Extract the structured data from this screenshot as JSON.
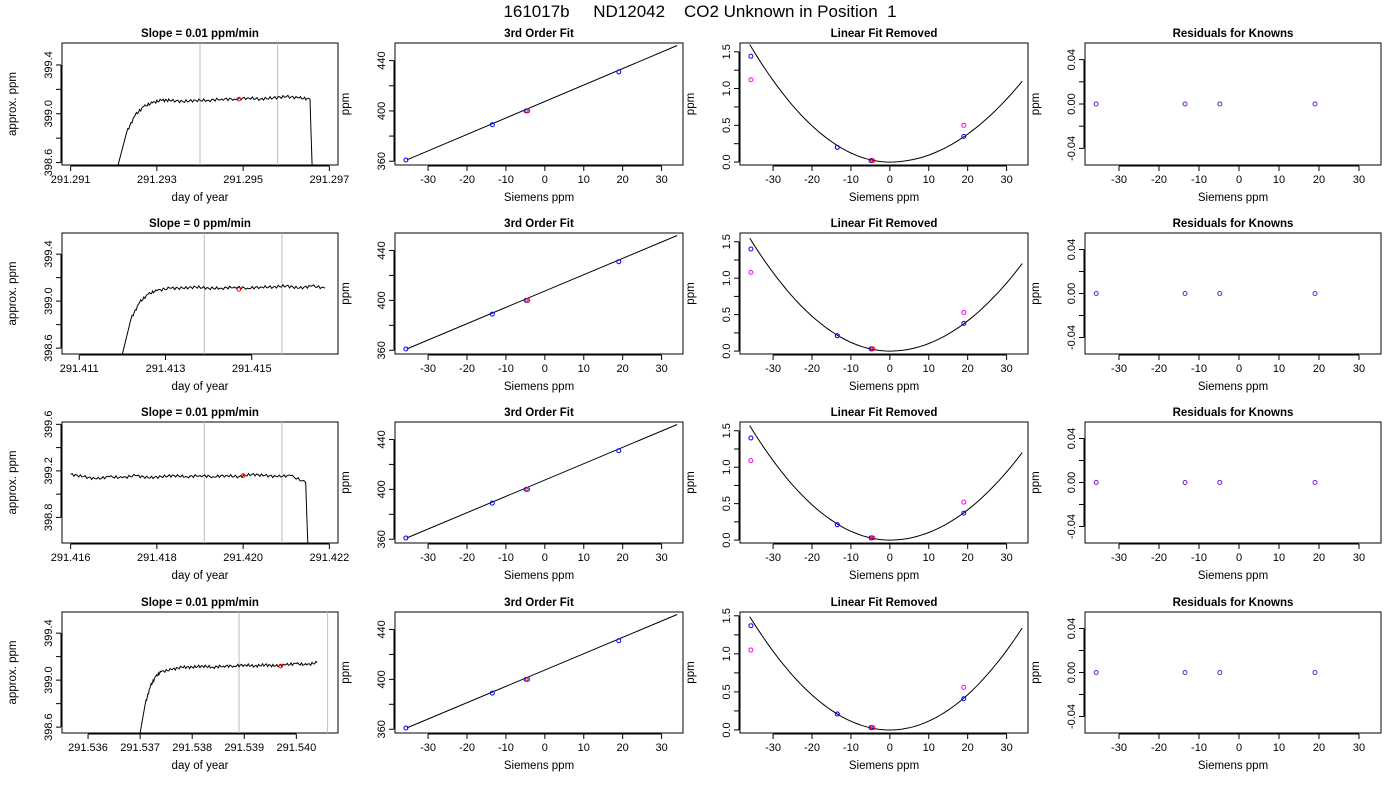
{
  "page_title": "161017b     ND12042    CO2 Unknown in Position  1",
  "chart_data": [
    {
      "type": "line",
      "panel": "ts",
      "title": "Slope =  0.01  ppm/min",
      "xlabel": "day of year",
      "ylabel": "approx. ppm",
      "xlim": [
        291.2908,
        291.2972
      ],
      "ylim": [
        398.58,
        399.58
      ],
      "xticks": [
        "291.291",
        "291.293",
        "291.295",
        "291.297"
      ],
      "xtick_values": [
        291.291,
        291.293,
        291.295,
        291.297
      ],
      "yticks": [
        "398.6",
        "399.0",
        "399.4"
      ],
      "ytick_values": [
        398.6,
        399.0,
        399.4
      ],
      "vlines": [
        291.294,
        291.2958
      ],
      "x": [
        291.2921,
        291.2923,
        291.2925,
        291.2927,
        291.2929,
        291.2931,
        291.2933,
        291.2936,
        291.2939,
        291.2942,
        291.2945,
        291.2948,
        291.2951,
        291.2954,
        291.2957,
        291.296,
        291.2963,
        291.29655,
        291.2966
      ],
      "y": [
        398.58,
        398.85,
        398.99,
        399.06,
        399.09,
        399.11,
        399.11,
        399.1,
        399.11,
        399.11,
        399.12,
        399.12,
        399.13,
        399.12,
        399.13,
        399.14,
        399.13,
        399.12,
        398.58
      ],
      "marker": {
        "x": 291.2949,
        "y": 399.12
      }
    },
    {
      "type": "scatter",
      "panel": "fit",
      "title": "3rd Order Fit",
      "xlabel": "Siemens ppm",
      "ylabel": "ppm",
      "xlim": [
        -38.5,
        35.5
      ],
      "ylim": [
        357,
        454
      ],
      "xticks": [
        "-30",
        "-20",
        "-10",
        "0",
        "10",
        "20",
        "30"
      ],
      "xtick_values": [
        -30,
        -20,
        -10,
        0,
        10,
        20,
        30
      ],
      "yticks": [
        "360",
        "400",
        "440"
      ],
      "ytick_values": [
        360,
        400,
        440
      ],
      "line": {
        "x": [
          -35.5,
          34
        ],
        "y": [
          361,
          452
        ]
      },
      "blue_points": {
        "x": [
          -35.7,
          -13.5,
          -4.8,
          19
        ],
        "y": [
          361,
          389,
          400,
          431
        ]
      },
      "red_points": {
        "x": [
          -4.4
        ],
        "y": [
          400
        ]
      }
    },
    {
      "type": "scatter",
      "panel": "lin",
      "title": "Linear Fit Removed",
      "xlabel": "Siemens ppm",
      "ylabel": "ppm",
      "xlim": [
        -38.5,
        35.5
      ],
      "ylim": [
        -0.04,
        1.62
      ],
      "xticks": [
        "-30",
        "-20",
        "-10",
        "0",
        "10",
        "20",
        "30"
      ],
      "xtick_values": [
        -30,
        -20,
        -10,
        0,
        10,
        20,
        30
      ],
      "yticks": [
        "0.0",
        "0.5",
        "1.0",
        "1.5"
      ],
      "ytick_values": [
        0,
        0.5,
        1.0,
        1.5
      ],
      "curve": {
        "min": 0.0,
        "xmin": 0,
        "left_x": -36,
        "left_y": 1.6,
        "right_x": 34,
        "right_y": 1.1
      },
      "blue_points": {
        "x": [
          -35.7,
          -13.5,
          -4.8,
          19
        ],
        "y": [
          1.44,
          0.2,
          0.02,
          0.35
        ]
      },
      "magenta_points": {
        "x": [
          -35.7,
          -13.5,
          -4.8,
          19
        ],
        "y": [
          1.12,
          0.2,
          0.02,
          0.5
        ]
      },
      "red_points": {
        "x": [
          -4.4
        ],
        "y": [
          0.02
        ]
      }
    },
    {
      "type": "scatter",
      "panel": "res",
      "title": "Residuals for Knowns",
      "xlabel": "Siemens ppm",
      "ylabel": "ppm",
      "xlim": [
        -38.5,
        35.5
      ],
      "ylim": [
        -0.055,
        0.055
      ],
      "xticks": [
        "-30",
        "-20",
        "-10",
        "0",
        "10",
        "20",
        "30"
      ],
      "xtick_values": [
        -30,
        -20,
        -10,
        0,
        10,
        20,
        30
      ],
      "yticks": [
        "-0.04",
        "0.00",
        "0.04"
      ],
      "ytick_values": [
        -0.04,
        0,
        0.04
      ],
      "points": {
        "x": [
          -35.7,
          -13.5,
          -4.8,
          19
        ],
        "y": [
          0,
          0,
          0,
          0
        ]
      }
    },
    {
      "type": "line",
      "panel": "ts",
      "title": "Slope =  0  ppm/min",
      "xlabel": "day of year",
      "ylabel": "approx. ppm",
      "xlim": [
        291.4106,
        291.417
      ],
      "ylim": [
        398.55,
        399.58
      ],
      "xticks": [
        "291.411",
        "291.413",
        "291.415"
      ],
      "xtick_values": [
        291.411,
        291.413,
        291.415
      ],
      "yticks": [
        "398.6",
        "399.0",
        "399.4"
      ],
      "ytick_values": [
        398.6,
        399.0,
        399.4
      ],
      "vlines": [
        291.4139,
        291.4157
      ],
      "x": [
        291.412,
        291.4122,
        291.4124,
        291.4126,
        291.4128,
        291.4131,
        291.4134,
        291.4137,
        291.414,
        291.4143,
        291.4146,
        291.4149,
        291.4152,
        291.4155,
        291.4158,
        291.4161,
        291.4164,
        291.4167
      ],
      "y": [
        398.55,
        398.85,
        398.99,
        399.06,
        399.09,
        399.11,
        399.11,
        399.12,
        399.11,
        399.11,
        399.12,
        399.11,
        399.12,
        399.12,
        399.13,
        399.11,
        399.13,
        399.11
      ],
      "marker": {
        "x": 291.4147,
        "y": 399.1
      }
    },
    {
      "type": "scatter",
      "panel": "fit",
      "title": "3rd Order Fit",
      "xlabel": "Siemens ppm",
      "ylabel": "ppm",
      "xlim": [
        -38.5,
        35.5
      ],
      "ylim": [
        357,
        454
      ],
      "xticks": [
        "-30",
        "-20",
        "-10",
        "0",
        "10",
        "20",
        "30"
      ],
      "xtick_values": [
        -30,
        -20,
        -10,
        0,
        10,
        20,
        30
      ],
      "yticks": [
        "360",
        "400",
        "440"
      ],
      "ytick_values": [
        360,
        400,
        440
      ],
      "line": {
        "x": [
          -35.5,
          34
        ],
        "y": [
          361,
          452
        ]
      },
      "blue_points": {
        "x": [
          -35.7,
          -13.5,
          -4.8,
          19
        ],
        "y": [
          361,
          389,
          400,
          431
        ]
      },
      "red_points": {
        "x": [
          -4.4
        ],
        "y": [
          400
        ]
      }
    },
    {
      "type": "scatter",
      "panel": "lin",
      "title": "Linear Fit Removed",
      "xlabel": "Siemens ppm",
      "ylabel": "ppm",
      "xlim": [
        -38.5,
        35.5
      ],
      "ylim": [
        -0.04,
        1.62
      ],
      "xticks": [
        "-30",
        "-20",
        "-10",
        "0",
        "10",
        "20",
        "30"
      ],
      "xtick_values": [
        -30,
        -20,
        -10,
        0,
        10,
        20,
        30
      ],
      "yticks": [
        "0.0",
        "0.5",
        "1.0",
        "1.5"
      ],
      "ytick_values": [
        0,
        0.5,
        1.0,
        1.5
      ],
      "curve": {
        "min": 0.0,
        "xmin": 0,
        "left_x": -36,
        "left_y": 1.55,
        "right_x": 34,
        "right_y": 1.2
      },
      "blue_points": {
        "x": [
          -35.7,
          -13.5,
          -4.8,
          19
        ],
        "y": [
          1.4,
          0.21,
          0.03,
          0.38
        ]
      },
      "magenta_points": {
        "x": [
          -35.7,
          -13.5,
          -4.8,
          19
        ],
        "y": [
          1.08,
          0.21,
          0.03,
          0.53
        ]
      },
      "red_points": {
        "x": [
          -4.4
        ],
        "y": [
          0.03
        ]
      }
    },
    {
      "type": "scatter",
      "panel": "res",
      "title": "Residuals for Knowns",
      "xlabel": "Siemens ppm",
      "ylabel": "ppm",
      "xlim": [
        -38.5,
        35.5
      ],
      "ylim": [
        -0.055,
        0.055
      ],
      "xticks": [
        "-30",
        "-20",
        "-10",
        "0",
        "10",
        "20",
        "30"
      ],
      "xtick_values": [
        -30,
        -20,
        -10,
        0,
        10,
        20,
        30
      ],
      "yticks": [
        "-0.04",
        "0.00",
        "0.04"
      ],
      "ytick_values": [
        -0.04,
        0,
        0.04
      ],
      "points": {
        "x": [
          -35.7,
          -13.5,
          -4.8,
          19
        ],
        "y": [
          0,
          0,
          0,
          0
        ]
      }
    },
    {
      "type": "line",
      "panel": "ts",
      "title": "Slope =  0.01  ppm/min",
      "xlabel": "day of year",
      "ylabel": "approx. ppm",
      "xlim": [
        291.4158,
        291.4222
      ],
      "ylim": [
        398.58,
        399.62
      ],
      "xticks": [
        "291.416",
        "291.418",
        "291.420",
        "291.422"
      ],
      "xtick_values": [
        291.416,
        291.418,
        291.42,
        291.422
      ],
      "yticks": [
        "398.8",
        "399.2",
        "399.6"
      ],
      "ytick_values": [
        398.8,
        399.2,
        399.6
      ],
      "vlines": [
        291.4191,
        291.4209
      ],
      "x": [
        291.416,
        291.4163,
        291.4166,
        291.4169,
        291.4172,
        291.4175,
        291.4178,
        291.4181,
        291.4184,
        291.4187,
        291.419,
        291.4193,
        291.4196,
        291.4199,
        291.4202,
        291.4205,
        291.4208,
        291.4211,
        291.42145,
        291.4215
      ],
      "y": [
        399.17,
        399.15,
        399.13,
        399.15,
        399.14,
        399.16,
        399.14,
        399.15,
        399.16,
        399.15,
        399.16,
        399.15,
        399.16,
        399.15,
        399.17,
        399.16,
        399.15,
        399.16,
        399.1,
        398.58
      ],
      "marker": {
        "x": 291.42,
        "y": 399.16
      }
    },
    {
      "type": "scatter",
      "panel": "fit",
      "title": "3rd Order Fit",
      "xlabel": "Siemens ppm",
      "ylabel": "ppm",
      "xlim": [
        -38.5,
        35.5
      ],
      "ylim": [
        357,
        454
      ],
      "xticks": [
        "-30",
        "-20",
        "-10",
        "0",
        "10",
        "20",
        "30"
      ],
      "xtick_values": [
        -30,
        -20,
        -10,
        0,
        10,
        20,
        30
      ],
      "yticks": [
        "360",
        "400",
        "440"
      ],
      "ytick_values": [
        360,
        400,
        440
      ],
      "line": {
        "x": [
          -35.5,
          34
        ],
        "y": [
          361,
          452
        ]
      },
      "blue_points": {
        "x": [
          -35.7,
          -13.5,
          -4.8,
          19
        ],
        "y": [
          361,
          389,
          400,
          431
        ]
      },
      "red_points": {
        "x": [
          -4.4
        ],
        "y": [
          400
        ]
      }
    },
    {
      "type": "scatter",
      "panel": "lin",
      "title": "Linear Fit Removed",
      "xlabel": "Siemens ppm",
      "ylabel": "ppm",
      "xlim": [
        -38.5,
        35.5
      ],
      "ylim": [
        -0.04,
        1.62
      ],
      "xticks": [
        "-30",
        "-20",
        "-10",
        "0",
        "10",
        "20",
        "30"
      ],
      "xtick_values": [
        -30,
        -20,
        -10,
        0,
        10,
        20,
        30
      ],
      "yticks": [
        "0.0",
        "0.5",
        "1.0",
        "1.5"
      ],
      "ytick_values": [
        0,
        0.5,
        1.0,
        1.5
      ],
      "curve": {
        "min": 0.0,
        "xmin": 0,
        "left_x": -36,
        "left_y": 1.57,
        "right_x": 34,
        "right_y": 1.2
      },
      "blue_points": {
        "x": [
          -35.7,
          -13.5,
          -4.8,
          19
        ],
        "y": [
          1.4,
          0.21,
          0.03,
          0.37
        ]
      },
      "magenta_points": {
        "x": [
          -35.7,
          -13.5,
          -4.8,
          19
        ],
        "y": [
          1.09,
          0.21,
          0.03,
          0.52
        ]
      },
      "red_points": {
        "x": [
          -4.4
        ],
        "y": [
          0.03
        ]
      }
    },
    {
      "type": "scatter",
      "panel": "res",
      "title": "Residuals for Knowns",
      "xlabel": "Siemens ppm",
      "ylabel": "ppm",
      "xlim": [
        -38.5,
        35.5
      ],
      "ylim": [
        -0.055,
        0.055
      ],
      "xticks": [
        "-30",
        "-20",
        "-10",
        "0",
        "10",
        "20",
        "30"
      ],
      "xtick_values": [
        -30,
        -20,
        -10,
        0,
        10,
        20,
        30
      ],
      "yticks": [
        "-0.04",
        "0.00",
        "0.04"
      ],
      "ytick_values": [
        -0.04,
        0,
        0.04
      ],
      "points": {
        "x": [
          -35.7,
          -13.5,
          -4.8,
          19
        ],
        "y": [
          0,
          0,
          0,
          0
        ]
      }
    },
    {
      "type": "line",
      "panel": "ts",
      "title": "Slope =  0.01  ppm/min",
      "xlabel": "day of year",
      "ylabel": "approx. ppm",
      "xlim": [
        291.5355,
        291.5408
      ],
      "ylim": [
        398.55,
        399.58
      ],
      "xticks": [
        "291.536",
        "291.537",
        "291.538",
        "291.539",
        "291.540"
      ],
      "xtick_values": [
        291.536,
        291.537,
        291.538,
        291.539,
        291.54
      ],
      "yticks": [
        "398.6",
        "399.0",
        "399.4"
      ],
      "ytick_values": [
        398.6,
        399.0,
        399.4
      ],
      "vlines": [
        291.5389,
        291.5406
      ],
      "x": [
        291.537,
        291.5371,
        291.5372,
        291.5373,
        291.5374,
        291.5376,
        291.5378,
        291.538,
        291.5382,
        291.5384,
        291.5386,
        291.5388,
        291.539,
        291.5392,
        291.5394,
        291.5396,
        291.5398,
        291.54,
        291.5402,
        291.5404
      ],
      "y": [
        398.55,
        398.8,
        398.95,
        399.03,
        399.07,
        399.09,
        399.11,
        399.11,
        399.12,
        399.11,
        399.12,
        399.12,
        399.13,
        399.12,
        399.13,
        399.12,
        399.13,
        399.14,
        399.13,
        399.15
      ],
      "marker": {
        "x": 291.5397,
        "y": 399.12
      }
    },
    {
      "type": "scatter",
      "panel": "fit",
      "title": "3rd Order Fit",
      "xlabel": "Siemens ppm",
      "ylabel": "ppm",
      "xlim": [
        -38.5,
        35.5
      ],
      "ylim": [
        357,
        454
      ],
      "xticks": [
        "-30",
        "-20",
        "-10",
        "0",
        "10",
        "20",
        "30"
      ],
      "xtick_values": [
        -30,
        -20,
        -10,
        0,
        10,
        20,
        30
      ],
      "yticks": [
        "360",
        "400",
        "440"
      ],
      "ytick_values": [
        360,
        400,
        440
      ],
      "line": {
        "x": [
          -35.5,
          34
        ],
        "y": [
          361,
          452
        ]
      },
      "blue_points": {
        "x": [
          -35.7,
          -13.5,
          -4.8,
          19
        ],
        "y": [
          361,
          389,
          400,
          431
        ]
      },
      "red_points": {
        "x": [
          -4.4
        ],
        "y": [
          400
        ]
      }
    },
    {
      "type": "scatter",
      "panel": "lin",
      "title": "Linear Fit Removed",
      "xlabel": "Siemens ppm",
      "ylabel": "ppm",
      "xlim": [
        -38.5,
        35.5
      ],
      "ylim": [
        -0.04,
        1.55
      ],
      "xticks": [
        "-30",
        "-20",
        "-10",
        "0",
        "10",
        "20",
        "30"
      ],
      "xtick_values": [
        -30,
        -20,
        -10,
        0,
        10,
        20,
        30
      ],
      "yticks": [
        "0.0",
        "0.5",
        "1.0",
        "1.5"
      ],
      "ytick_values": [
        0,
        0.5,
        1.0,
        1.5
      ],
      "curve": {
        "min": 0.0,
        "xmin": 0,
        "left_x": -36,
        "left_y": 1.49,
        "right_x": 34,
        "right_y": 1.34
      },
      "blue_points": {
        "x": [
          -35.7,
          -13.5,
          -4.8,
          19
        ],
        "y": [
          1.37,
          0.21,
          0.03,
          0.41
        ]
      },
      "magenta_points": {
        "x": [
          -35.7,
          -13.5,
          -4.8,
          19
        ],
        "y": [
          1.05,
          0.21,
          0.03,
          0.56
        ]
      },
      "red_points": {
        "x": [
          -4.4
        ],
        "y": [
          0.03
        ]
      }
    },
    {
      "type": "scatter",
      "panel": "res",
      "title": "Residuals for Knowns",
      "xlabel": "Siemens ppm",
      "ylabel": "ppm",
      "xlim": [
        -38.5,
        35.5
      ],
      "ylim": [
        -0.055,
        0.055
      ],
      "xticks": [
        "-30",
        "-20",
        "-10",
        "0",
        "10",
        "20",
        "30"
      ],
      "xtick_values": [
        -30,
        -20,
        -10,
        0,
        10,
        20,
        30
      ],
      "yticks": [
        "-0.04",
        "0.00",
        "0.04"
      ],
      "ytick_values": [
        -0.04,
        0,
        0.04
      ],
      "points": {
        "x": [
          -35.7,
          -13.5,
          -4.8,
          19
        ],
        "y": [
          0,
          0,
          0,
          0
        ]
      }
    }
  ],
  "colors": {
    "axis": "#000000",
    "line": "#000000",
    "vline": "#bebebe",
    "blue": "#0000ff",
    "magenta": "#ff00ff",
    "red": "#ff0000",
    "purple": "#6a1fd0"
  }
}
